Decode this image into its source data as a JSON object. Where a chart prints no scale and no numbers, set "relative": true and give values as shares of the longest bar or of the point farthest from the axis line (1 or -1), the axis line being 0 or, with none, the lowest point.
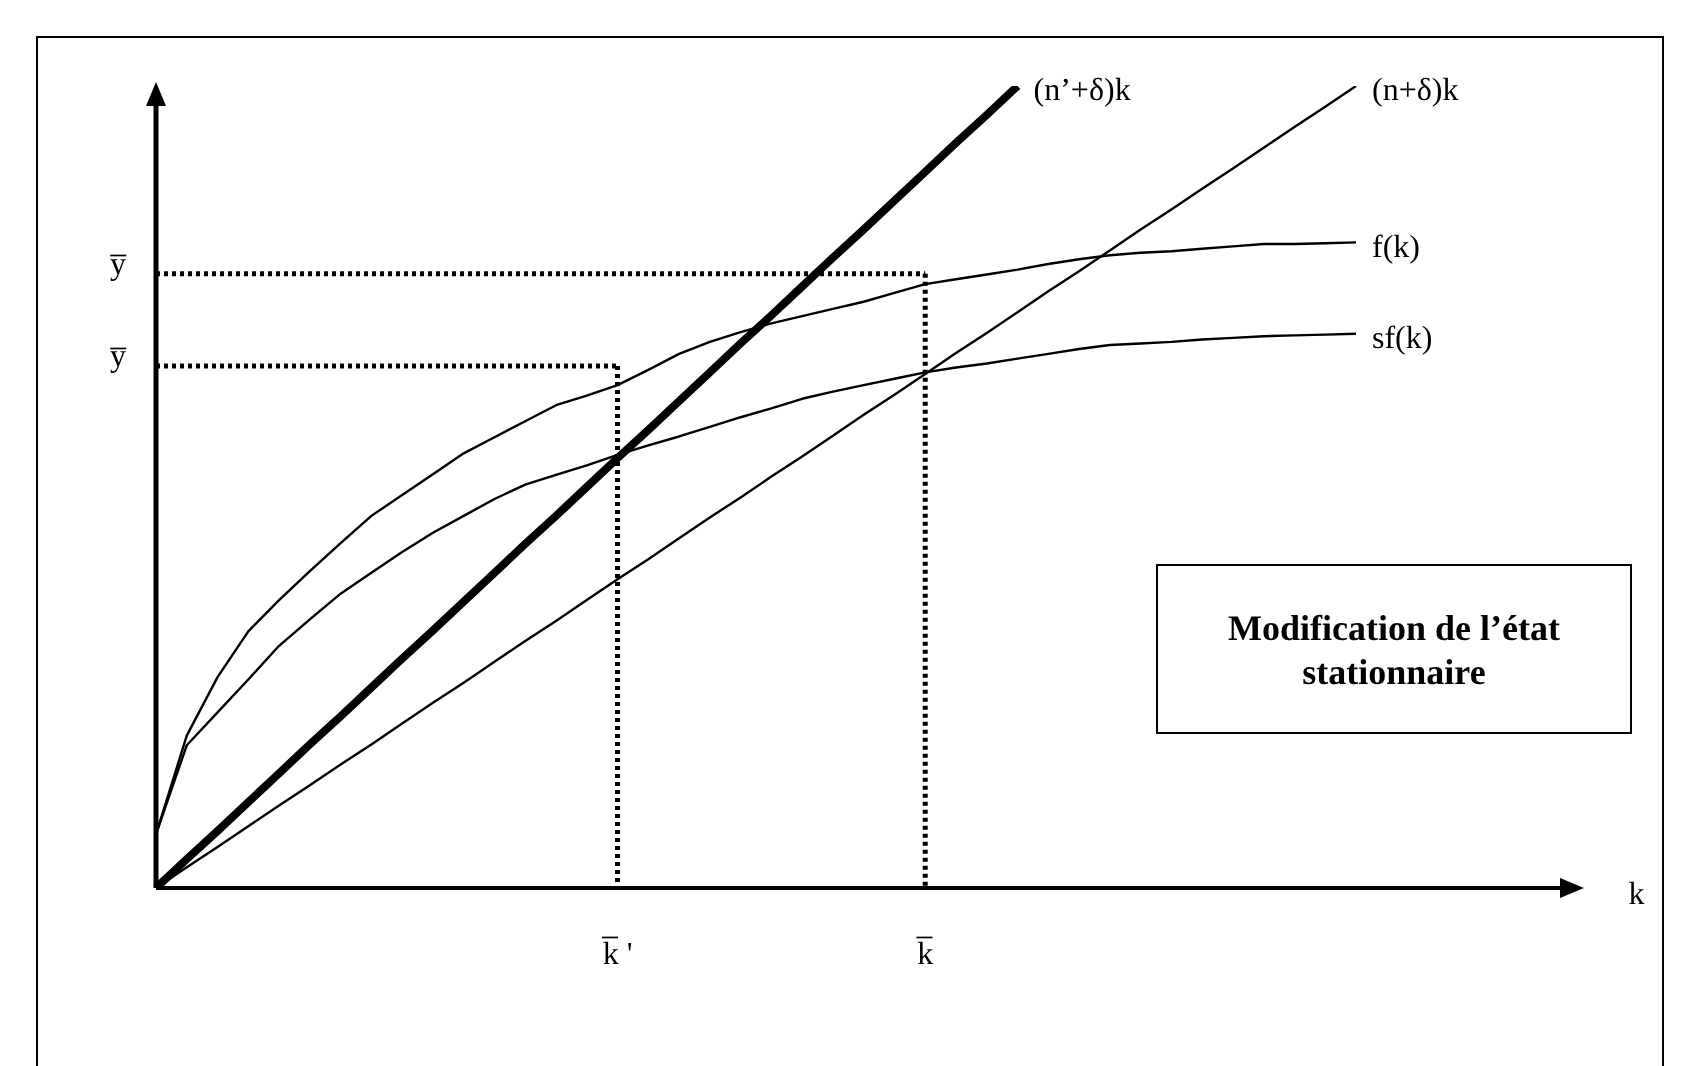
{
  "chart_data": {
    "type": "line",
    "relative": true,
    "legend": false,
    "grid": false,
    "marker": "none",
    "categories": [
      null,
      null,
      null,
      null,
      null,
      null,
      null,
      null,
      null,
      null,
      null,
      null,
      null,
      null,
      null,
      "k̅ '",
      null,
      null,
      null,
      null,
      null,
      null,
      null,
      null,
      null,
      "k̅",
      null,
      null,
      null,
      null,
      null,
      null,
      null,
      null,
      null,
      null,
      null,
      null,
      null,
      null
    ],
    "series": [
      {
        "name": "(n’+δ)k",
        "color": "#000000",
        "values": [
          0,
          0.036,
          0.071,
          0.107,
          0.143,
          0.179,
          0.214,
          0.25,
          0.286,
          0.321,
          0.357,
          0.393,
          0.429,
          0.464,
          0.5,
          0.536,
          0.571,
          0.607,
          0.643,
          0.679,
          0.714,
          0.75,
          0.786,
          0.821,
          0.857,
          0.893,
          0.929,
          0.964,
          1,
          null,
          null,
          null,
          null,
          null,
          null,
          null,
          null,
          null,
          null,
          null
        ]
      },
      {
        "name": "(n+δ)k",
        "color": "#000000",
        "values": [
          0,
          0.026,
          0.051,
          0.077,
          0.103,
          0.128,
          0.154,
          0.179,
          0.205,
          0.231,
          0.256,
          0.282,
          0.308,
          0.333,
          0.359,
          0.385,
          0.41,
          0.436,
          0.462,
          0.487,
          0.513,
          0.538,
          0.564,
          0.59,
          0.615,
          0.641,
          0.667,
          0.692,
          0.718,
          0.744,
          0.769,
          0.795,
          0.821,
          0.846,
          0.872,
          0.897,
          0.923,
          0.949,
          0.974,
          1
        ]
      },
      {
        "name": "f(k)",
        "color": "#000000",
        "values": [
          0.067,
          0.19,
          0.263,
          0.32,
          0.359,
          0.395,
          0.43,
          0.464,
          0.49,
          0.516,
          0.542,
          0.562,
          0.582,
          0.602,
          0.614,
          0.627,
          0.646,
          0.666,
          0.681,
          0.693,
          0.704,
          0.713,
          0.722,
          0.731,
          0.742,
          0.753,
          0.759,
          0.765,
          0.771,
          0.778,
          0.784,
          0.789,
          0.792,
          0.794,
          0.797,
          0.8,
          0.803,
          0.803,
          0.804,
          0.805
        ]
      },
      {
        "name": "sf(k)",
        "color": "#000000",
        "values": [
          0.067,
          0.178,
          0.219,
          0.26,
          0.302,
          0.335,
          0.367,
          0.393,
          0.419,
          0.443,
          0.464,
          0.485,
          0.503,
          0.515,
          0.527,
          0.54,
          0.552,
          0.563,
          0.575,
          0.587,
          0.598,
          0.61,
          0.619,
          0.627,
          0.635,
          0.643,
          0.649,
          0.654,
          0.66,
          0.666,
          0.672,
          0.677,
          0.679,
          0.681,
          0.684,
          0.686,
          0.688,
          0.689,
          0.69,
          0.691
        ]
      },
      {
        "name": "y̅",
        "color": "#000000",
        "line_style": "dotted",
        "values": [
          0.766,
          0.766,
          0.766,
          0.766,
          0.766,
          0.766,
          0.766,
          0.766,
          0.766,
          0.766,
          0.766,
          0.766,
          0.766,
          0.766,
          0.766,
          0.766,
          0.766,
          0.766,
          0.766,
          0.766,
          0.766,
          0.766,
          0.766,
          0.766,
          0.766,
          0.766,
          null,
          null,
          null,
          null,
          null,
          null,
          null,
          null,
          null,
          null,
          null,
          null,
          null,
          null
        ]
      },
      {
        "color": "#000000",
        "line_style": "dotted",
        "x": [
          "k̅",
          "k̅"
        ],
        "values": [
          0.766,
          0
        ]
      },
      {
        "name": "y̅",
        "color": "#000000",
        "line_style": "dotted",
        "values": [
          0.651,
          0.651,
          0.651,
          0.651,
          0.651,
          0.651,
          0.651,
          0.651,
          0.651,
          0.651,
          0.651,
          0.651,
          0.651,
          0.651,
          0.651,
          0.651,
          null,
          null,
          null,
          null,
          null,
          null,
          null,
          null,
          null,
          null,
          null,
          null,
          null,
          null,
          null,
          null,
          null,
          null,
          null,
          null,
          null,
          null,
          null,
          null
        ]
      },
      {
        "color": "#000000",
        "line_style": "dotted",
        "x": [
          "k̅ '",
          "k̅ '"
        ],
        "values": [
          0.651,
          0
        ]
      }
    ],
    "annotations": [
      "k",
      "Modification de l’état stationnaire"
    ]
  }
}
